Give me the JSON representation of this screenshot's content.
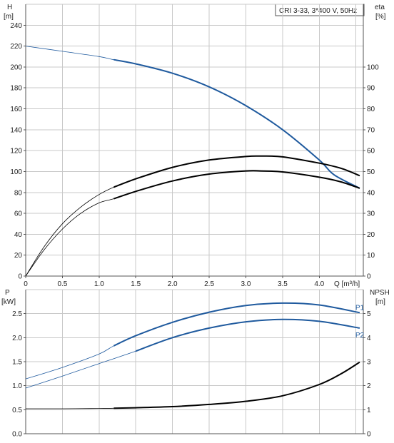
{
  "chart_data": [
    {
      "type": "line",
      "panel": "top",
      "title": "CRI 3-33, 3*400 V, 50Hz",
      "x_axis": {
        "label": "Q [m³/h]",
        "range": [
          0,
          4.6
        ],
        "ticks": [
          0,
          0.5,
          1.0,
          1.5,
          2.0,
          2.5,
          3.0,
          3.5,
          4.0
        ],
        "tick_labels": [
          "0",
          "0.5",
          "1.0",
          "1.5",
          "2.0",
          "2.5",
          "3.0",
          "3.5",
          "4.0"
        ]
      },
      "y_left": {
        "label": "H",
        "unit": "[m]",
        "range": [
          0,
          260
        ],
        "ticks": [
          0,
          20,
          40,
          60,
          80,
          100,
          120,
          140,
          160,
          180,
          200,
          220,
          240
        ],
        "tick_labels": [
          "0",
          "20",
          "40",
          "60",
          "80",
          "100",
          "120",
          "140",
          "160",
          "180",
          "200",
          "220",
          "240"
        ]
      },
      "y_right": {
        "label": "eta",
        "unit": "[%]",
        "range": [
          0,
          130
        ],
        "ticks": [
          0,
          10,
          20,
          30,
          40,
          50,
          60,
          70,
          80,
          90,
          100
        ],
        "tick_labels": [
          "0",
          "10",
          "20",
          "30",
          "40",
          "50",
          "60",
          "70",
          "80",
          "90",
          "100"
        ]
      },
      "grid": true,
      "series": [
        {
          "axis": "left",
          "color": "#1f5a9e",
          "x": [
            0,
            0.5,
            1.0,
            1.2,
            1.5,
            2.0,
            2.5,
            3.0,
            3.5,
            4.0,
            4.2,
            4.55
          ],
          "y": [
            220,
            215,
            210,
            207,
            203,
            194,
            181,
            163,
            140,
            111,
            97,
            84
          ],
          "operating_range": [
            1.2,
            4.55
          ]
        },
        {
          "axis": "right",
          "color": "#000000",
          "x": [
            0,
            0.25,
            0.5,
            0.75,
            1.0,
            1.2,
            1.5,
            2.0,
            2.5,
            3.0,
            3.2,
            3.5,
            4.0,
            4.3,
            4.55
          ],
          "y": [
            0,
            14,
            25,
            33,
            39,
            42.5,
            46.5,
            52,
            55.5,
            57.2,
            57.4,
            57,
            54,
            51.5,
            48
          ],
          "operating_range": [
            1.2,
            4.55
          ]
        },
        {
          "axis": "right",
          "color": "#000000",
          "x": [
            0,
            0.25,
            0.5,
            0.75,
            1.0,
            1.2,
            1.5,
            2.0,
            2.5,
            3.0,
            3.2,
            3.5,
            4.0,
            4.3,
            4.55
          ],
          "y": [
            0,
            12.5,
            22.5,
            30,
            35,
            37,
            40.5,
            45.5,
            48.8,
            50.3,
            50.3,
            49.8,
            47.3,
            45,
            42
          ],
          "operating_range": [
            1.2,
            4.55
          ]
        }
      ]
    },
    {
      "type": "line",
      "panel": "bottom",
      "x_axis": {
        "range": [
          0,
          4.6
        ]
      },
      "y_left": {
        "label": "P",
        "unit": "[kW]",
        "range": [
          0,
          3.0
        ],
        "ticks": [
          0,
          0.5,
          1.0,
          1.5,
          2.0,
          2.5
        ],
        "tick_labels": [
          "0.0",
          "0.5",
          "1.0",
          "1.5",
          "2.0",
          "2.5"
        ]
      },
      "y_right": {
        "label": "NPSH",
        "unit": "[m]",
        "range": [
          0,
          6
        ],
        "ticks": [
          0,
          1,
          2,
          3,
          4,
          5
        ],
        "tick_labels": [
          "0",
          "1",
          "2",
          "3",
          "4",
          "5"
        ]
      },
      "grid": true,
      "series": [
        {
          "name": "P1",
          "axis": "left",
          "color": "#1f5a9e",
          "x": [
            0,
            0.5,
            1.0,
            1.2,
            1.5,
            2.0,
            2.5,
            3.0,
            3.5,
            4.0,
            4.55
          ],
          "y": [
            1.14,
            1.38,
            1.66,
            1.83,
            2.04,
            2.32,
            2.53,
            2.67,
            2.72,
            2.68,
            2.52
          ],
          "operating_range": [
            1.2,
            4.55
          ]
        },
        {
          "name": "P2",
          "axis": "left",
          "color": "#1f5a9e",
          "x": [
            0,
            0.5,
            1.0,
            1.5,
            2.0,
            2.5,
            3.0,
            3.5,
            4.0,
            4.55
          ],
          "y": [
            0.95,
            1.2,
            1.46,
            1.72,
            2.0,
            2.2,
            2.33,
            2.38,
            2.34,
            2.2
          ],
          "operating_range": [
            1.2,
            4.55
          ]
        },
        {
          "axis": "right",
          "color": "#000000",
          "x": [
            0,
            0.5,
            1.0,
            1.2,
            1.5,
            2.0,
            2.5,
            3.0,
            3.5,
            4.0,
            4.3,
            4.55
          ],
          "y": [
            1.04,
            1.04,
            1.05,
            1.06,
            1.08,
            1.13,
            1.22,
            1.35,
            1.58,
            2.05,
            2.5,
            2.98
          ],
          "operating_range": [
            1.2,
            4.55
          ]
        }
      ]
    }
  ]
}
